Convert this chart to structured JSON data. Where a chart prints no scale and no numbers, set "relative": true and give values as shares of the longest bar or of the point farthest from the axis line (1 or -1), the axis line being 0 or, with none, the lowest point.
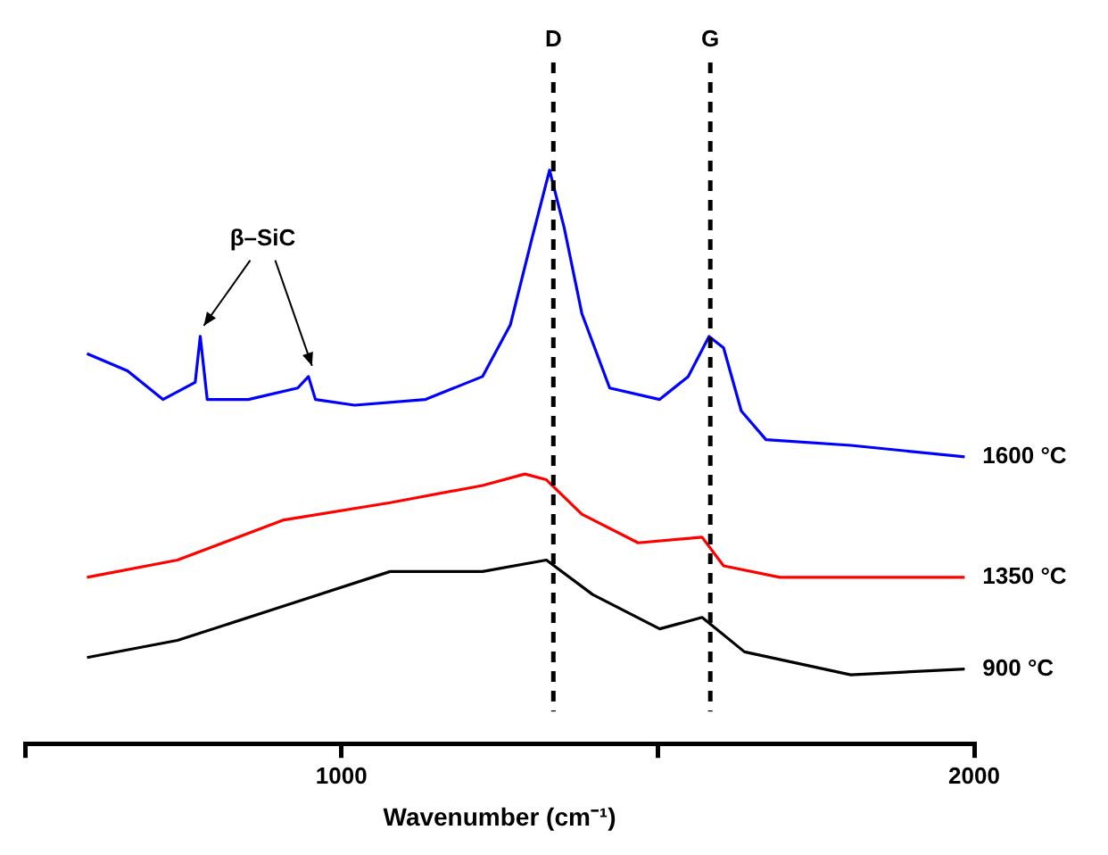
{
  "chart_data": {
    "type": "line",
    "relative": true,
    "xlabel": "Wavenumber (cm⁻¹)",
    "xlim": [
      500,
      2000
    ],
    "xticks": [
      {
        "value": 500,
        "label": null
      },
      1000,
      {
        "value": 1500,
        "label": null
      },
      2000
    ],
    "grid": false,
    "legend": false,
    "line_style": "solid",
    "ref_lines": [
      {
        "axis": "x",
        "value": 1335,
        "label": "D",
        "color": "#000000",
        "line_style": "dashed"
      },
      {
        "axis": "x",
        "value": 1583,
        "label": "G",
        "color": "#000000",
        "line_style": "dashed"
      }
    ],
    "annotations": [
      "β–SiC"
    ],
    "series": [
      {
        "name": "1600 °C",
        "color": "#0000ff",
        "x": [
          598,
          662,
          718,
          769,
          777,
          788,
          853,
          931,
          948,
          959,
          1021,
          1133,
          1223,
          1267,
          1301,
          1329,
          1352,
          1380,
          1424,
          1503,
          1548,
          1581,
          1604,
          1632,
          1671,
          1805,
          1985
        ],
        "values": [
          0.68,
          0.65,
          0.6,
          0.63,
          0.71,
          0.6,
          0.6,
          0.62,
          0.64,
          0.6,
          0.59,
          0.6,
          0.64,
          0.73,
          0.88,
          1,
          0.9,
          0.75,
          0.62,
          0.6,
          0.64,
          0.71,
          0.69,
          0.58,
          0.53,
          0.52,
          0.5
        ]
      },
      {
        "name": "1350 °C",
        "color": "#ff0000",
        "x": [
          598,
          741,
          909,
          1077,
          1223,
          1290,
          1324,
          1380,
          1469,
          1570,
          1604,
          1693,
          1985
        ],
        "values": [
          0.29,
          0.32,
          0.39,
          0.42,
          0.45,
          0.47,
          0.46,
          0.4,
          0.35,
          0.36,
          0.31,
          0.29,
          0.29
        ]
      },
      {
        "name": "900 °C",
        "color": "#000000",
        "x": [
          598,
          741,
          909,
          1077,
          1223,
          1324,
          1397,
          1503,
          1570,
          1637,
          1805,
          1985
        ],
        "values": [
          0.15,
          0.18,
          0.24,
          0.3,
          0.3,
          0.32,
          0.26,
          0.2,
          0.22,
          0.16,
          0.12,
          0.13
        ]
      }
    ]
  }
}
